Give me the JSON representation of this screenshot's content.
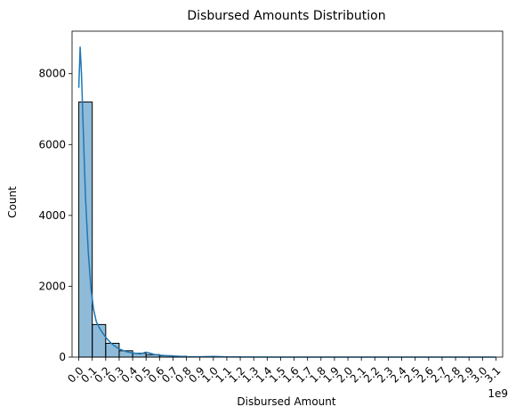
{
  "chart_data": {
    "type": "bar",
    "title": "Disbursed Amounts Distribution",
    "xlabel": "Disbursed Amount",
    "ylabel": "Count",
    "x_offset_text": "1e9",
    "xlim": [
      -0.05,
      3.15
    ],
    "ylim": [
      0,
      9200
    ],
    "x_ticks": [
      0.0,
      0.1,
      0.2,
      0.3,
      0.4,
      0.5,
      0.6,
      0.7,
      0.8,
      0.9,
      1.0,
      1.1,
      1.2,
      1.3,
      1.4,
      1.5,
      1.6,
      1.7,
      1.8,
      1.9,
      2.0,
      2.1,
      2.2,
      2.3,
      2.4,
      2.5,
      2.6,
      2.7,
      2.8,
      2.9,
      3.0,
      3.1
    ],
    "x_tick_labels": [
      "0.0",
      "0.1",
      "0.2",
      "0.3",
      "0.4",
      "0.5",
      "0.6",
      "0.7",
      "0.8",
      "0.9",
      "1.0",
      "1.1",
      "1.2",
      "1.3",
      "1.4",
      "1.5",
      "1.6",
      "1.7",
      "1.8",
      "1.9",
      "2.0",
      "2.1",
      "2.2",
      "2.3",
      "2.4",
      "2.5",
      "2.6",
      "2.7",
      "2.8",
      "2.9",
      "3.0",
      "3.1"
    ],
    "y_ticks": [
      0,
      2000,
      4000,
      6000,
      8000
    ],
    "y_tick_labels": [
      "0",
      "2000",
      "4000",
      "6000",
      "8000"
    ],
    "grid": false,
    "bin_width": 0.1,
    "bins": [
      {
        "x0": 0.0,
        "x1": 0.1,
        "count": 7200
      },
      {
        "x0": 0.1,
        "x1": 0.2,
        "count": 920
      },
      {
        "x0": 0.2,
        "x1": 0.3,
        "count": 390
      },
      {
        "x0": 0.3,
        "x1": 0.4,
        "count": 180
      },
      {
        "x0": 0.4,
        "x1": 0.5,
        "count": 110
      },
      {
        "x0": 0.5,
        "x1": 0.6,
        "count": 70
      },
      {
        "x0": 0.6,
        "x1": 0.7,
        "count": 40
      },
      {
        "x0": 0.7,
        "x1": 0.8,
        "count": 25
      },
      {
        "x0": 0.8,
        "x1": 0.9,
        "count": 12
      },
      {
        "x0": 0.9,
        "x1": 1.0,
        "count": 6
      },
      {
        "x0": 1.0,
        "x1": 1.1,
        "count": 12
      },
      {
        "x0": 1.1,
        "x1": 1.2,
        "count": 5
      }
    ],
    "kde": {
      "x": [
        0.0,
        0.01,
        0.02,
        0.035,
        0.05,
        0.07,
        0.09,
        0.11,
        0.13,
        0.15,
        0.17,
        0.2,
        0.23,
        0.26,
        0.3,
        0.34,
        0.38,
        0.42,
        0.46,
        0.5,
        0.53,
        0.56,
        0.6,
        0.65,
        0.7,
        0.75,
        0.8,
        0.9,
        1.0,
        1.05,
        1.1,
        1.2,
        1.5,
        2.0,
        2.5,
        3.1
      ],
      "y": [
        7600,
        8750,
        8000,
        6200,
        4500,
        3000,
        1950,
        1350,
        1000,
        850,
        720,
        560,
        430,
        330,
        230,
        170,
        130,
        110,
        95,
        140,
        110,
        75,
        55,
        42,
        32,
        22,
        14,
        8,
        18,
        12,
        6,
        3,
        1,
        0,
        0,
        0
      ]
    },
    "colors": {
      "bar_fill": "#1f77b4",
      "bar_fill_opacity": 0.5,
      "bar_edge": "#000000",
      "kde_line": "#1f77b4"
    }
  }
}
